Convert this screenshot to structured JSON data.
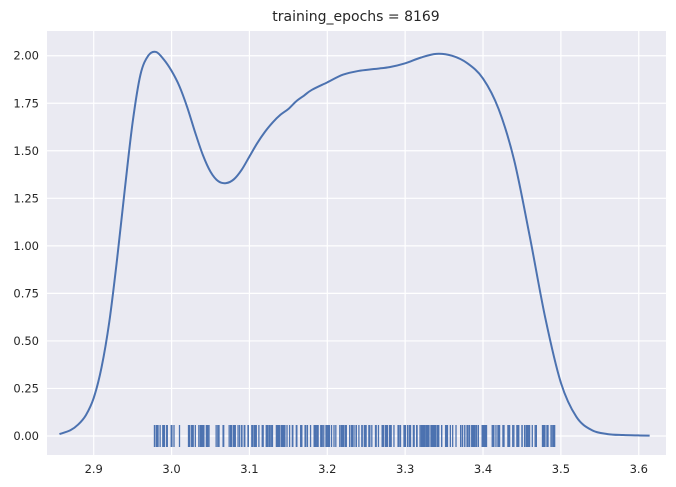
{
  "chart_data": {
    "type": "line",
    "title": "training_epochs = 8169",
    "xlabel": "",
    "ylabel": "",
    "xlim": [
      2.84,
      3.635
    ],
    "ylim": [
      -0.1,
      2.13
    ],
    "x_ticks": [
      2.9,
      3.0,
      3.1,
      3.2,
      3.3,
      3.4,
      3.5,
      3.6
    ],
    "x_tick_labels": [
      "2.9",
      "3.0",
      "3.1",
      "3.2",
      "3.3",
      "3.4",
      "3.5",
      "3.6"
    ],
    "y_ticks": [
      0.0,
      0.25,
      0.5,
      0.75,
      1.0,
      1.25,
      1.5,
      1.75,
      2.0
    ],
    "y_tick_labels": [
      "0.00",
      "0.25",
      "0.50",
      "0.75",
      "1.00",
      "1.25",
      "1.50",
      "1.75",
      "2.00"
    ],
    "grid": true,
    "line_color": "#4c72b0",
    "background_color": "#eaeaf2",
    "grid_color": "#ffffff",
    "series": [
      {
        "x": [
          2.856,
          2.87,
          2.88,
          2.89,
          2.9,
          2.91,
          2.92,
          2.93,
          2.94,
          2.95,
          2.96,
          2.97,
          2.98,
          2.99,
          3.0,
          3.01,
          3.02,
          3.03,
          3.04,
          3.05,
          3.06,
          3.07,
          3.08,
          3.09,
          3.1,
          3.11,
          3.12,
          3.13,
          3.14,
          3.15,
          3.16,
          3.17,
          3.18,
          3.2,
          3.22,
          3.24,
          3.26,
          3.28,
          3.3,
          3.32,
          3.34,
          3.36,
          3.38,
          3.4,
          3.42,
          3.44,
          3.46,
          3.48,
          3.5,
          3.52,
          3.54,
          3.56,
          3.58,
          3.6,
          3.614
        ],
        "y": [
          0.01,
          0.03,
          0.06,
          0.11,
          0.2,
          0.36,
          0.6,
          0.93,
          1.3,
          1.65,
          1.9,
          2.0,
          2.02,
          1.98,
          1.92,
          1.84,
          1.73,
          1.6,
          1.48,
          1.39,
          1.34,
          1.33,
          1.35,
          1.4,
          1.47,
          1.54,
          1.6,
          1.65,
          1.69,
          1.72,
          1.76,
          1.79,
          1.82,
          1.86,
          1.9,
          1.92,
          1.93,
          1.94,
          1.96,
          1.99,
          2.01,
          2.0,
          1.96,
          1.88,
          1.72,
          1.45,
          1.05,
          0.62,
          0.28,
          0.1,
          0.03,
          0.01,
          0.005,
          0.003,
          0.002
        ]
      }
    ],
    "rug": {
      "x_min": 2.978,
      "x_max": 3.492,
      "count": 320
    }
  }
}
